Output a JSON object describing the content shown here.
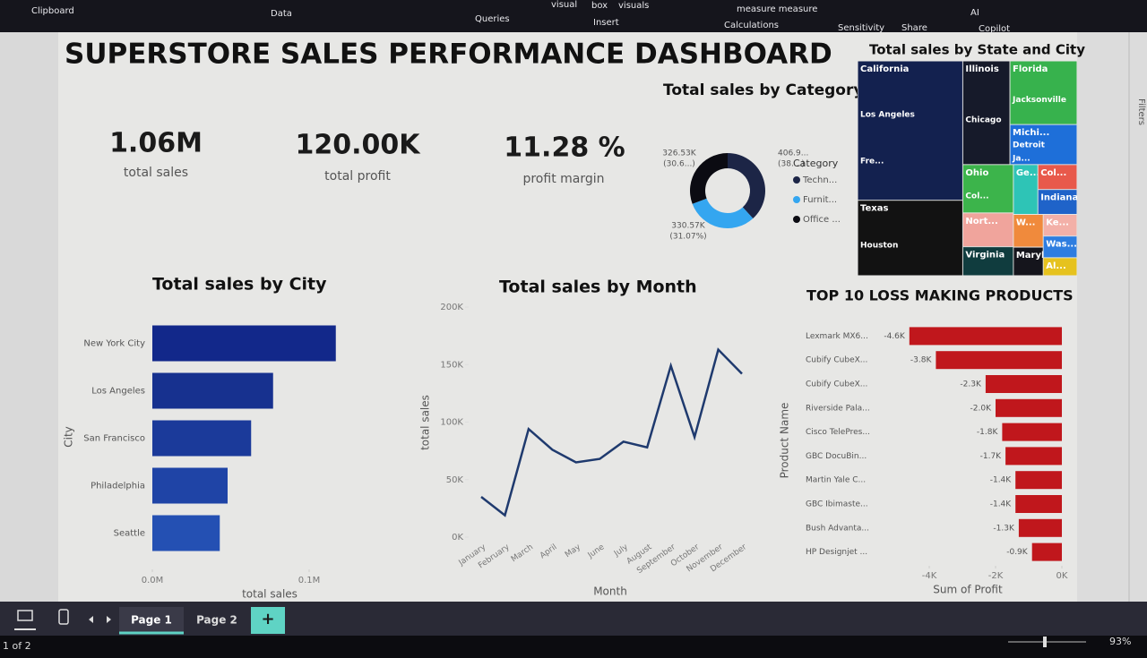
{
  "ribbon": [
    "Clipboard",
    "Data",
    "Queries",
    "visual",
    "box",
    "visuals",
    "Insert",
    "measure measure",
    "Calculations",
    "Sensitivity",
    "Share",
    "AI",
    "Copilot"
  ],
  "side_panel": "Filters",
  "title": "SUPERSTORE SALES PERFORMANCE DASHBOARD",
  "kpis": [
    {
      "value": "1.06M",
      "label": "total sales"
    },
    {
      "value": "120.00K",
      "label": "total profit"
    },
    {
      "value": "11.28 %",
      "label": "profit margin"
    }
  ],
  "chart_data": [
    {
      "type": "donut",
      "title": "Total sales by Category",
      "legend_title": "Category",
      "categories": [
        "Techn...",
        "Furnit...",
        "Office ..."
      ],
      "values": [
        406.9,
        330.57,
        326.53
      ],
      "value_labels": [
        "406.9...",
        "330.57K",
        "326.53K"
      ],
      "percent_labels": [
        "(38....)",
        "(31.07%)",
        "(30.6...)"
      ],
      "colors": [
        "#1c2546",
        "#34a6f0",
        "#0b0b12"
      ]
    },
    {
      "type": "treemap",
      "title": "Total sales by State and City",
      "items": [
        {
          "name": "California",
          "value": 120,
          "color": "#13214f",
          "cities": [
            "Los Angeles",
            "Fre..."
          ]
        },
        {
          "name": "Texas",
          "value": 65,
          "color": "#121212",
          "cities": [
            "Houston"
          ]
        },
        {
          "name": "Illinois",
          "value": 40,
          "color": "#161a2a",
          "cities": [
            "Chicago"
          ]
        },
        {
          "name": "Florida",
          "value": 35,
          "color": "#37b24d",
          "cities": [
            "Jacksonville"
          ]
        },
        {
          "name": "Michi...",
          "value": 22,
          "color": "#1e6fd9",
          "cities": [
            "Detroit",
            "Ja..."
          ]
        },
        {
          "name": "Ohio",
          "value": 20,
          "color": "#3cb44b",
          "cities": [
            "Col..."
          ]
        },
        {
          "name": "Nort...",
          "value": 14,
          "color": "#f0a49c",
          "cities": []
        },
        {
          "name": "Virginia",
          "value": 12,
          "color": "#103c3e",
          "cities": []
        },
        {
          "name": "Ge...",
          "value": 10,
          "color": "#2ec4b6",
          "cities": []
        },
        {
          "name": "Col...",
          "value": 8,
          "color": "#e8594b",
          "cities": []
        },
        {
          "name": "Indiana",
          "value": 8,
          "color": "#1f63c9",
          "cities": []
        },
        {
          "name": "W...",
          "value": 8,
          "color": "#f08a3c",
          "cities": []
        },
        {
          "name": "Maryland",
          "value": 7,
          "color": "#15151c",
          "cities": []
        },
        {
          "name": "Ke...",
          "value": 6,
          "color": "#f3b0a8",
          "cities": []
        },
        {
          "name": "Was...",
          "value": 6,
          "color": "#2e7de0",
          "cities": []
        },
        {
          "name": "Al...",
          "value": 5,
          "color": "#e6c21e",
          "cities": []
        }
      ]
    },
    {
      "type": "hbar",
      "title": "Total sales by City",
      "x_label": "total sales",
      "y_label": "City",
      "categories": [
        "New York City",
        "Los Angeles",
        "San Francisco",
        "Philadelphia",
        "Seattle"
      ],
      "values": [
        0.117,
        0.077,
        0.063,
        0.048,
        0.043
      ],
      "colors": [
        "#12288a",
        "#17318f",
        "#1b3a9a",
        "#1f44a6",
        "#2450b3"
      ],
      "xlim": [
        0,
        0.14
      ],
      "xticks": [
        {
          "value": 0,
          "label": "0.0M"
        },
        {
          "value": 0.1,
          "label": "0.1M"
        }
      ]
    },
    {
      "type": "line",
      "title": "Total sales by Month",
      "x_label": "Month",
      "y_label": "total sales",
      "categories": [
        "January",
        "February",
        "March",
        "April",
        "May",
        "June",
        "July",
        "August",
        "September",
        "October",
        "November",
        "December"
      ],
      "values": [
        35,
        19,
        94,
        76,
        65,
        68,
        83,
        78,
        149,
        87,
        163,
        142
      ],
      "color": "#1f3a6e",
      "ylim": [
        0,
        200
      ],
      "yticks": [
        {
          "value": 0,
          "label": "0K"
        },
        {
          "value": 50,
          "label": "50K"
        },
        {
          "value": 100,
          "label": "100K"
        },
        {
          "value": 150,
          "label": "150K"
        },
        {
          "value": 200,
          "label": "200K"
        }
      ]
    },
    {
      "type": "hbar",
      "title": "TOP 10 LOSS MAKING PRODUCTS",
      "x_label": "Sum of Profit",
      "y_label": "Product Name",
      "categories": [
        "Lexmark MX6...",
        "Cubify CubeX...",
        "Cubify CubeX...",
        "Riverside Pala...",
        "Cisco TelePres...",
        "GBC DocuBin...",
        "Martin Yale C...",
        "GBC Ibimaste...",
        "Bush Advanta...",
        "HP Designjet ..."
      ],
      "values": [
        -4.6,
        -3.8,
        -2.3,
        -2.0,
        -1.8,
        -1.7,
        -1.4,
        -1.4,
        -1.3,
        -0.9
      ],
      "value_labels": [
        "-4.6K",
        "-3.8K",
        "-2.3K",
        "-2.0K",
        "-1.8K",
        "-1.7K",
        "-1.4K",
        "-1.4K",
        "-1.3K",
        "-0.9K"
      ],
      "color": "#c0171c",
      "xlim": [
        -5,
        0
      ],
      "xticks": [
        {
          "value": -4,
          "label": "-4K"
        },
        {
          "value": -2,
          "label": "-2K"
        },
        {
          "value": 0,
          "label": "0K"
        }
      ]
    }
  ],
  "tabs": [
    "Page 1",
    "Page 2"
  ],
  "add_page": "+",
  "status": {
    "pages": "1 of 2",
    "zoom": "93%"
  }
}
